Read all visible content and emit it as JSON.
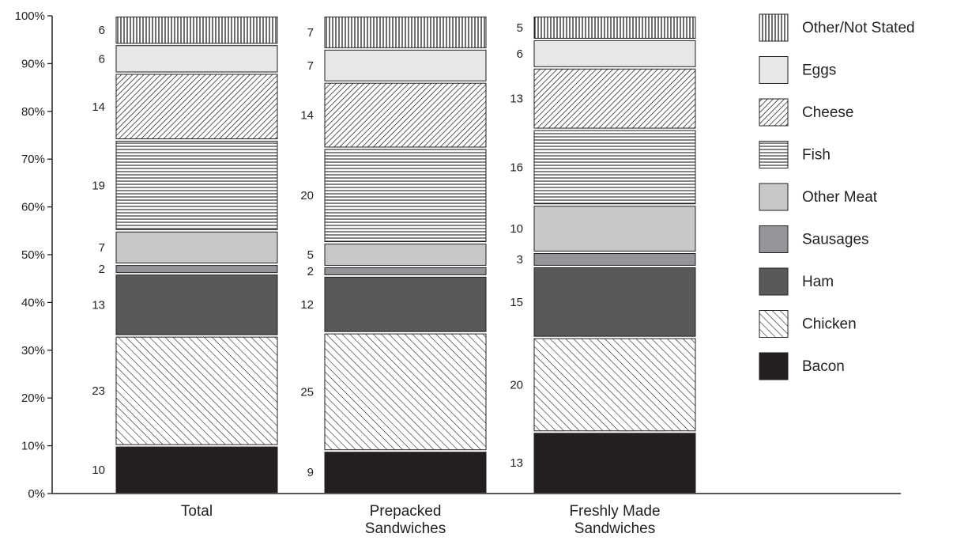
{
  "chart_data": {
    "type": "bar",
    "stacked": true,
    "percent_stacked": true,
    "categories": [
      [
        "Total"
      ],
      [
        "Prepacked",
        "Sandwiches"
      ],
      [
        "Freshly Made",
        "Sandwiches"
      ]
    ],
    "series": [
      {
        "name": "Bacon",
        "values": [
          10,
          9,
          13
        ],
        "labels": [
          "10",
          "9",
          "13"
        ],
        "pattern": "solid-black"
      },
      {
        "name": "Chicken",
        "values": [
          23,
          25,
          20
        ],
        "labels": [
          "23",
          "25",
          "20"
        ],
        "pattern": "diagonal-forward"
      },
      {
        "name": "Ham",
        "values": [
          13,
          12,
          15
        ],
        "labels": [
          "13",
          "12",
          "15"
        ],
        "pattern": "solid-dark-gray"
      },
      {
        "name": "Sausages",
        "values": [
          2,
          2,
          3
        ],
        "labels": [
          "2",
          "2",
          "3"
        ],
        "pattern": "solid-mid-gray"
      },
      {
        "name": "Other Meat",
        "values": [
          7,
          5,
          10
        ],
        "labels": [
          "7",
          "5",
          "10"
        ],
        "pattern": "solid-light-gray"
      },
      {
        "name": "Fish",
        "values": [
          19,
          20,
          16
        ],
        "labels": [
          "19",
          "20",
          "16"
        ],
        "pattern": "horizontal-lines"
      },
      {
        "name": "Cheese",
        "values": [
          14,
          14,
          13
        ],
        "labels": [
          "14",
          "14",
          "13"
        ],
        "pattern": "diagonal-backward"
      },
      {
        "name": "Eggs",
        "values": [
          6,
          7,
          6
        ],
        "labels": [
          "6",
          "7",
          "6"
        ],
        "pattern": "solid-very-light-gray"
      },
      {
        "name": "Other/Not Stated",
        "values": [
          6,
          7,
          5
        ],
        "labels": [
          "6",
          "7",
          "5"
        ],
        "pattern": "vertical-lines"
      }
    ],
    "y_ticks": [
      "0%",
      "10%",
      "20%",
      "30%",
      "40%",
      "50%",
      "60%",
      "70%",
      "80%",
      "90%",
      "100%"
    ],
    "ylim": [
      0,
      100
    ],
    "legend_position": "right",
    "legend_order": [
      "Other/Not Stated",
      "Eggs",
      "Cheese",
      "Fish",
      "Other Meat",
      "Sausages",
      "Ham",
      "Chicken",
      "Bacon"
    ],
    "grid": false,
    "colors": {
      "ink": "#231f20",
      "ham": "#58595b",
      "sausages": "#939598",
      "other_meat": "#c7c8ca",
      "eggs": "#e6e7e8"
    }
  }
}
